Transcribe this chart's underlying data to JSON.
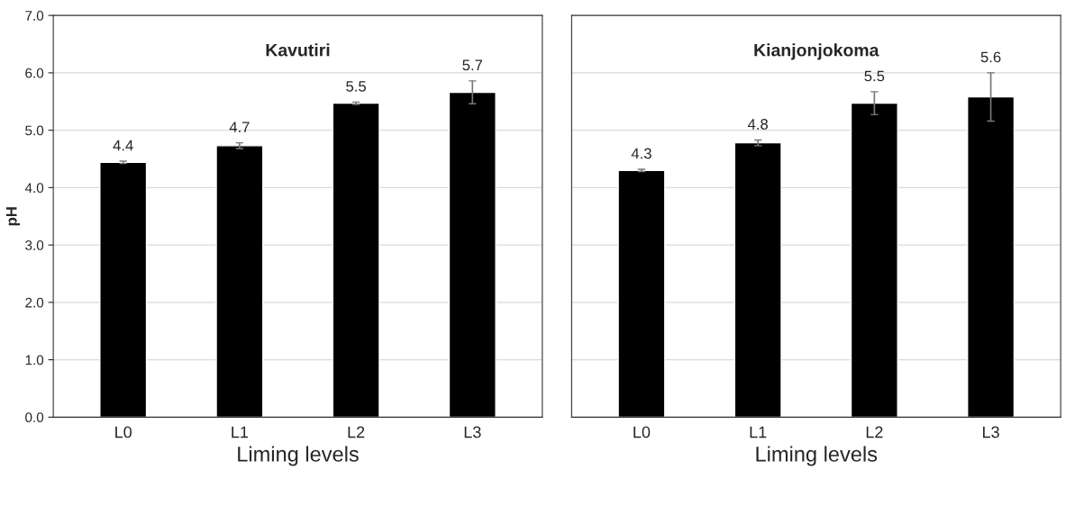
{
  "chart_data": [
    {
      "type": "bar",
      "title": "Kavutiri",
      "xlabel": "Liming levels",
      "ylabel": "pH",
      "categories": [
        "L0",
        "L1",
        "L2",
        "L3"
      ],
      "series": [
        {
          "color": "#000000",
          "values": [
            4.44,
            4.73,
            5.47,
            5.66
          ],
          "errors": [
            0.02,
            0.05,
            0.02,
            0.2
          ],
          "value_labels": [
            "4.4",
            "4.7",
            "5.5",
            "5.7"
          ]
        }
      ],
      "ylim": [
        0,
        7
      ],
      "yticks": [
        {
          "value": 0,
          "label": "0.0"
        },
        {
          "value": 1,
          "label": "1.0"
        },
        {
          "value": 2,
          "label": "2.0"
        },
        {
          "value": 3,
          "label": "3.0"
        },
        {
          "value": 4,
          "label": "4.0"
        },
        {
          "value": 5,
          "label": "5.0"
        },
        {
          "value": 6,
          "label": "6.0"
        },
        {
          "value": 7,
          "label": "7.0"
        }
      ],
      "grid": "y"
    },
    {
      "type": "bar",
      "title": "Kianjonjokoma",
      "xlabel": "Liming levels",
      "categories": [
        "L0",
        "L1",
        "L2",
        "L3"
      ],
      "series": [
        {
          "color": "#000000",
          "values": [
            4.3,
            4.78,
            5.47,
            5.58
          ],
          "errors": [
            0.02,
            0.05,
            0.2,
            0.42
          ],
          "value_labels": [
            "4.3",
            "4.8",
            "5.5",
            "5.6"
          ]
        }
      ],
      "ylim": [
        0,
        7
      ],
      "yticks": [
        0,
        1,
        2,
        3,
        4,
        5,
        6,
        7
      ],
      "grid": "y",
      "tick_labels": "x"
    }
  ]
}
